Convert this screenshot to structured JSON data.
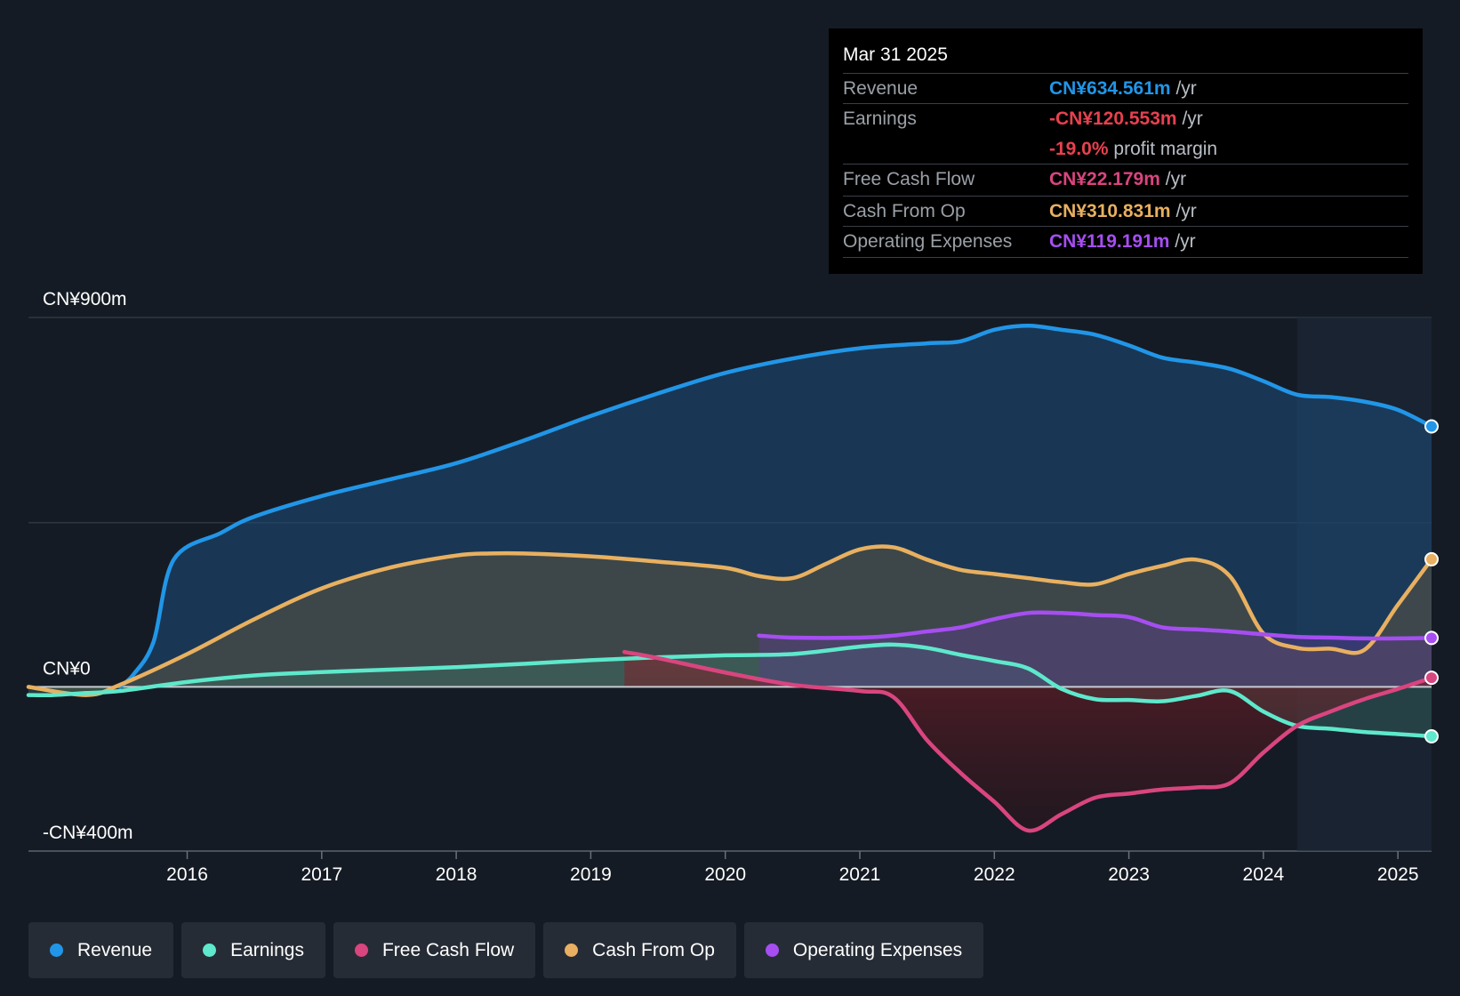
{
  "tooltip": {
    "date": "Mar 31 2025",
    "rows": [
      {
        "label": "Revenue",
        "value": "CN¥634.561m",
        "unit": "/yr",
        "color": "#2196e8"
      },
      {
        "label": "Earnings",
        "value": "-CN¥120.553m",
        "unit": "/yr",
        "color": "#e8404f"
      },
      {
        "label": "",
        "value": "-19.0%",
        "unit": "profit margin",
        "color": "#e8404f"
      },
      {
        "label": "Free Cash Flow",
        "value": "CN¥22.179m",
        "unit": "/yr",
        "color": "#d9457f"
      },
      {
        "label": "Cash From Op",
        "value": "CN¥310.831m",
        "unit": "/yr",
        "color": "#e8b060"
      },
      {
        "label": "Operating Expenses",
        "value": "CN¥119.191m",
        "unit": "/yr",
        "color": "#a64ef2"
      }
    ]
  },
  "legend": [
    {
      "label": "Revenue",
      "color": "#2196e8"
    },
    {
      "label": "Earnings",
      "color": "#5ee8cc"
    },
    {
      "label": "Free Cash Flow",
      "color": "#d9457f"
    },
    {
      "label": "Cash From Op",
      "color": "#e8b060"
    },
    {
      "label": "Operating Expenses",
      "color": "#a64ef2"
    }
  ],
  "chart_data": {
    "type": "area",
    "title": "",
    "xlabel": "",
    "ylabel": "",
    "ylim": [
      -400,
      900
    ],
    "y_axis_labels": [
      "CN¥900m",
      "CN¥0",
      "-CN¥400m"
    ],
    "y_axis_label_values": [
      900,
      0,
      -400
    ],
    "xlim": [
      2014.82,
      2025.25
    ],
    "x_ticks": [
      2016,
      2017,
      2018,
      2019,
      2020,
      2021,
      2022,
      2023,
      2024,
      2025
    ],
    "x_tick_labels": [
      "2016",
      "2017",
      "2018",
      "2019",
      "2020",
      "2021",
      "2022",
      "2023",
      "2024",
      "2025"
    ],
    "forecast_start": 2024.25,
    "series": [
      {
        "name": "Revenue",
        "color": "#2196e8",
        "x": [
          2015.5,
          2015.6,
          2015.75,
          2015.9,
          2016.25,
          2016.5,
          2017,
          2017.5,
          2018,
          2018.5,
          2019,
          2019.5,
          2020,
          2020.5,
          2021,
          2021.5,
          2021.75,
          2022,
          2022.25,
          2022.5,
          2022.75,
          2023,
          2023.25,
          2023.5,
          2023.75,
          2024,
          2024.25,
          2024.5,
          2024.75,
          2025,
          2025.25
        ],
        "values": [
          0,
          30,
          110,
          310,
          375,
          415,
          465,
          505,
          545,
          600,
          660,
          715,
          765,
          800,
          825,
          837,
          842,
          870,
          880,
          870,
          858,
          832,
          802,
          790,
          775,
          745,
          712,
          706,
          695,
          675,
          634.561
        ]
      },
      {
        "name": "Earnings",
        "color": "#5ee8cc",
        "x": [
          2014.82,
          2015,
          2015.25,
          2015.5,
          2016,
          2016.5,
          2017,
          2017.5,
          2018,
          2018.5,
          2019,
          2019.5,
          2020,
          2020.5,
          2021,
          2021.25,
          2021.5,
          2021.75,
          2022,
          2022.25,
          2022.5,
          2022.75,
          2023,
          2023.25,
          2023.5,
          2023.75,
          2024,
          2024.25,
          2024.5,
          2024.75,
          2025,
          2025.25
        ],
        "values": [
          -20,
          -20,
          -15,
          -10,
          12,
          28,
          36,
          42,
          48,
          56,
          65,
          72,
          77,
          80,
          98,
          103,
          95,
          78,
          63,
          45,
          -5,
          -30,
          -32,
          -35,
          -22,
          -10,
          -60,
          -95,
          -102,
          -110,
          -115,
          -120.553
        ]
      },
      {
        "name": "Free Cash Flow",
        "color": "#d9457f",
        "x": [
          2019.25,
          2019.5,
          2020,
          2020.5,
          2021,
          2021.25,
          2021.5,
          2021.75,
          2022,
          2022.25,
          2022.5,
          2022.75,
          2023,
          2023.25,
          2023.5,
          2023.75,
          2024,
          2024.25,
          2024.5,
          2024.75,
          2025,
          2025.25
        ],
        "values": [
          85,
          70,
          35,
          5,
          -10,
          -25,
          -130,
          -210,
          -280,
          -350,
          -310,
          -270,
          -260,
          -250,
          -245,
          -235,
          -160,
          -95,
          -60,
          -30,
          -5,
          22.179
        ]
      },
      {
        "name": "Cash From Op",
        "color": "#e8b060",
        "x": [
          2014.82,
          2015.25,
          2015.5,
          2016,
          2016.5,
          2017,
          2017.5,
          2018,
          2018.25,
          2018.5,
          2019,
          2019.5,
          2020,
          2020.25,
          2020.5,
          2020.75,
          2021,
          2021.25,
          2021.5,
          2021.75,
          2022,
          2022.25,
          2022.5,
          2022.75,
          2023,
          2023.25,
          2023.5,
          2023.75,
          2024,
          2024.25,
          2024.5,
          2024.75,
          2025,
          2025.25
        ],
        "values": [
          0,
          -20,
          5,
          80,
          165,
          240,
          290,
          320,
          325,
          325,
          318,
          305,
          290,
          270,
          265,
          300,
          335,
          340,
          310,
          285,
          275,
          265,
          255,
          250,
          275,
          295,
          310,
          270,
          130,
          95,
          93,
          90,
          200,
          310.831
        ]
      },
      {
        "name": "Operating Expenses",
        "color": "#a64ef2",
        "x": [
          2020.25,
          2020.5,
          2021,
          2021.25,
          2021.5,
          2021.75,
          2022,
          2022.25,
          2022.5,
          2022.75,
          2023,
          2023.25,
          2023.5,
          2023.75,
          2024,
          2024.25,
          2024.5,
          2024.75,
          2025,
          2025.25
        ],
        "values": [
          125,
          120,
          120,
          125,
          135,
          145,
          165,
          180,
          180,
          175,
          170,
          145,
          140,
          135,
          128,
          122,
          120,
          118,
          118,
          119.191
        ]
      }
    ]
  }
}
